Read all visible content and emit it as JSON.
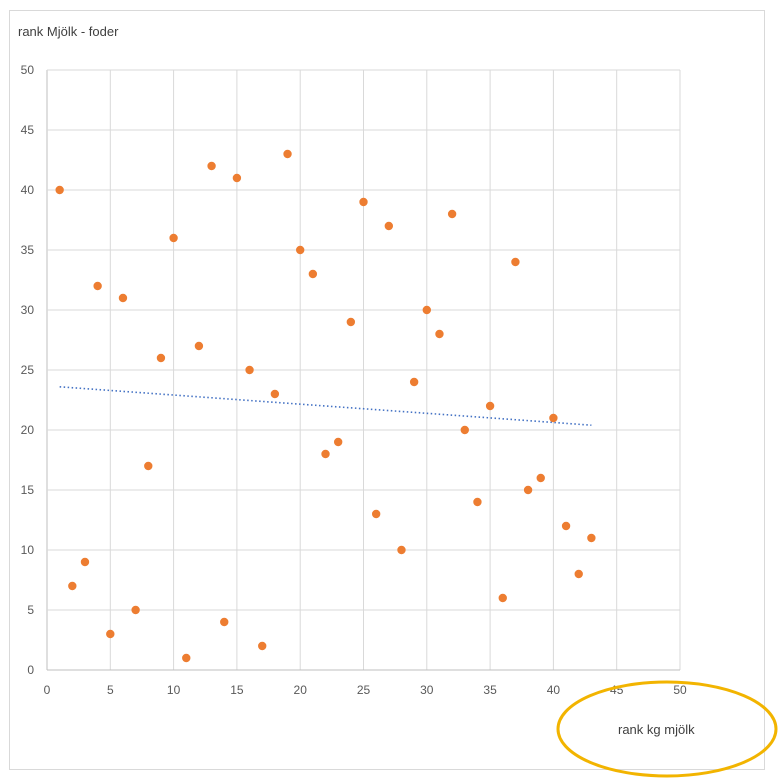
{
  "chart_data": {
    "type": "scatter",
    "title": "rank Mjölk - foder",
    "xlabel": "rank kg mjölk",
    "ylabel": "",
    "xlim": [
      0,
      50
    ],
    "ylim": [
      0,
      50
    ],
    "xticks": [
      0,
      5,
      10,
      15,
      20,
      25,
      30,
      35,
      40,
      45,
      50
    ],
    "yticks": [
      0,
      5,
      10,
      15,
      20,
      25,
      30,
      35,
      40,
      45,
      50
    ],
    "grid": true,
    "series": [
      {
        "points": [
          [
            1,
            40
          ],
          [
            2,
            7
          ],
          [
            3,
            9
          ],
          [
            4,
            32
          ],
          [
            5,
            3
          ],
          [
            6,
            31
          ],
          [
            7,
            5
          ],
          [
            8,
            17
          ],
          [
            9,
            26
          ],
          [
            10,
            36
          ],
          [
            11,
            1
          ],
          [
            12,
            27
          ],
          [
            13,
            42
          ],
          [
            14,
            4
          ],
          [
            15,
            41
          ],
          [
            16,
            25
          ],
          [
            17,
            2
          ],
          [
            18,
            23
          ],
          [
            19,
            43
          ],
          [
            20,
            35
          ],
          [
            21,
            33
          ],
          [
            22,
            18
          ],
          [
            23,
            19
          ],
          [
            24,
            29
          ],
          [
            25,
            39
          ],
          [
            26,
            13
          ],
          [
            27,
            37
          ],
          [
            28,
            10
          ],
          [
            29,
            24
          ],
          [
            30,
            30
          ],
          [
            31,
            28
          ],
          [
            32,
            38
          ],
          [
            33,
            20
          ],
          [
            34,
            14
          ],
          [
            35,
            22
          ],
          [
            36,
            6
          ],
          [
            37,
            34
          ],
          [
            38,
            15
          ],
          [
            39,
            16
          ],
          [
            40,
            21
          ],
          [
            41,
            12
          ],
          [
            42,
            8
          ],
          [
            43,
            11
          ]
        ],
        "color": "#ED7D31"
      }
    ],
    "trendline": {
      "type": "linear",
      "x": [
        1,
        43
      ],
      "y": [
        23.6,
        20.4
      ],
      "color": "#4472C4",
      "style": "dotted"
    },
    "annotation": {
      "shape": "ellipse",
      "around": "rank kg mjölk",
      "color": "#F2B400"
    }
  }
}
